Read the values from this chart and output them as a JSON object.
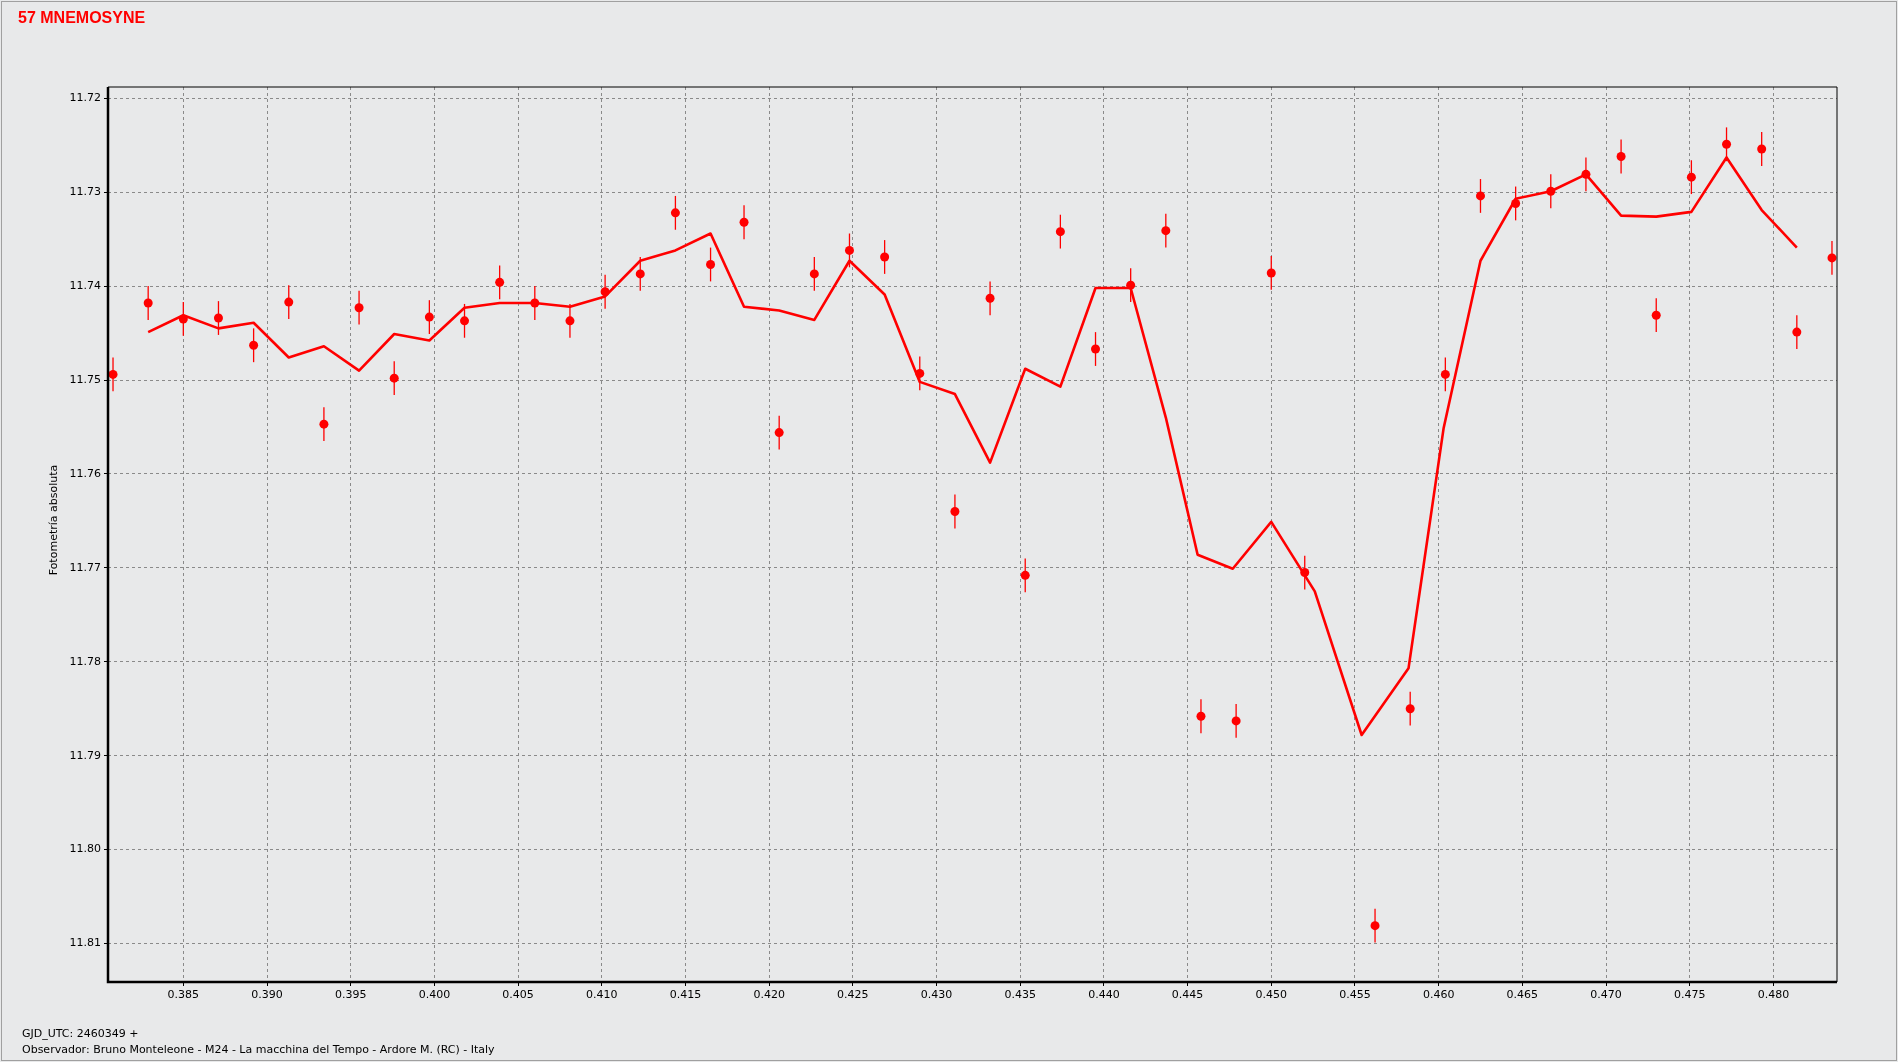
{
  "chart_data": {
    "type": "scatter",
    "title": "57 MNEMOSYNE",
    "ylabel": "Fotometría absoluta",
    "xlabel": "GJD_UTC: 2460349 +",
    "annotations": [
      "Observador: Bruno Monteleone - M24 - La macchina del Tempo - Ardore M. (RC) - Italy"
    ],
    "xlim": [
      0.3805,
      0.4838
    ],
    "ylim": [
      11.8141,
      11.7188
    ],
    "xticks": [
      0.385,
      {
        "value": 0.39,
        "label": "0.390"
      },
      0.395,
      {
        "value": 0.4,
        "label": "0.400"
      },
      0.405,
      {
        "value": 0.41,
        "label": "0.410"
      },
      0.415,
      {
        "value": 0.42,
        "label": "0.420"
      },
      0.425,
      {
        "value": 0.43,
        "label": "0.430"
      },
      0.435,
      {
        "value": 0.44,
        "label": "0.440"
      },
      0.445,
      {
        "value": 0.45,
        "label": "0.450"
      },
      0.455,
      {
        "value": 0.46,
        "label": "0.460"
      },
      0.465,
      {
        "value": 0.47,
        "label": "0.470"
      },
      0.475,
      {
        "value": 0.48,
        "label": "0.480"
      }
    ],
    "yticks": [
      11.72,
      11.73,
      11.74,
      11.75,
      11.76,
      11.77,
      11.78,
      11.79,
      {
        "value": 11.8,
        "label": "11.80"
      },
      11.81
    ],
    "grid": true,
    "legend": false,
    "line_style": "solid",
    "series": [
      {
        "marker": "circle",
        "color": "#ff0000",
        "x": [
          0.3808,
          0.3829,
          0.385,
          0.3871,
          0.3892,
          0.3913,
          0.3934,
          0.3955,
          0.3976,
          0.3997,
          0.4018,
          0.4039,
          0.406,
          0.4081,
          0.4102,
          0.4123,
          0.4144,
          0.4165,
          0.4185,
          0.4206,
          0.4227,
          0.4248,
          0.4269,
          0.429,
          0.4311,
          0.4332,
          0.4353,
          0.4374,
          0.4395,
          0.4416,
          0.4437,
          0.4458,
          0.4479,
          0.45,
          0.452,
          0.4562,
          0.4583,
          0.4604,
          0.4625,
          0.4646,
          0.4667,
          0.4688,
          0.4709,
          0.473,
          0.4751,
          0.4772,
          0.4793,
          0.4814,
          0.4835
        ],
        "values": [
          11.7494,
          11.7418,
          11.7435,
          11.7434,
          11.7463,
          11.7417,
          11.7547,
          11.7423,
          11.7498,
          11.7433,
          11.7437,
          11.7396,
          11.7418,
          11.7437,
          11.7406,
          11.7387,
          11.7322,
          11.7377,
          11.7332,
          11.7556,
          11.7387,
          11.7362,
          11.7369,
          11.7493,
          11.764,
          11.7413,
          11.7708,
          11.7342,
          11.7467,
          11.7399,
          11.7341,
          11.7858,
          11.7863,
          11.7386,
          11.7705,
          11.8081,
          11.785,
          11.7494,
          11.7304,
          11.7312,
          11.7299,
          11.7281,
          11.7262,
          11.7431,
          11.7284,
          11.7249,
          11.7254,
          11.7449,
          11.737
        ],
        "errors": [
          0.0018,
          0.0018,
          0.0018,
          0.0018,
          0.0018,
          0.0018,
          0.0018,
          0.0018,
          0.0018,
          0.0018,
          0.0018,
          0.0018,
          0.0018,
          0.0018,
          0.0018,
          0.0018,
          0.0018,
          0.0018,
          0.0018,
          0.0018,
          0.0018,
          0.0018,
          0.0018,
          0.0018,
          0.0018,
          0.0018,
          0.0018,
          0.0018,
          0.0018,
          0.0018,
          0.0018,
          0.0018,
          0.0018,
          0.0018,
          0.0018,
          0.0018,
          0.0018,
          0.0018,
          0.0018,
          0.0018,
          0.0018,
          0.0018,
          0.0018,
          0.0018,
          0.0018,
          0.0018,
          0.0018,
          0.0018,
          0.0018
        ]
      },
      {
        "type": "line",
        "marker": "none",
        "color": "#ff0000",
        "x": [
          0.3829,
          0.385,
          0.3871,
          0.3892,
          0.3913,
          0.3934,
          0.3955,
          0.3976,
          0.3997,
          0.4018,
          0.4039,
          0.406,
          0.4081,
          0.4102,
          0.4123,
          0.4144,
          0.4165,
          0.4185,
          0.4206,
          0.4227,
          0.4248,
          0.4269,
          0.429,
          0.4311,
          0.4332,
          0.4353,
          0.4374,
          0.4395,
          0.4416,
          0.4437,
          0.4456,
          0.4477,
          0.45,
          0.4526,
          0.4554,
          0.4582,
          0.4603,
          0.4625,
          0.4646,
          0.4667,
          0.4688,
          0.4709,
          0.473,
          0.4751,
          0.4772,
          0.4793,
          0.4814
        ],
        "values": [
          11.7449,
          11.7431,
          11.7445,
          11.7439,
          11.7476,
          11.7464,
          11.749,
          11.7451,
          11.7458,
          11.7423,
          11.7418,
          11.7418,
          11.7422,
          11.7411,
          11.7373,
          11.7362,
          11.7344,
          11.7422,
          11.7426,
          11.7436,
          11.7373,
          11.7409,
          11.7502,
          11.7515,
          11.7588,
          11.7488,
          11.7507,
          11.7402,
          11.7402,
          11.754,
          11.7686,
          11.7701,
          11.7651,
          11.7725,
          11.7878,
          11.7807,
          11.7551,
          11.7373,
          11.7307,
          11.7299,
          11.7281,
          11.7325,
          11.7326,
          11.7321,
          11.7263,
          11.7319,
          11.7359
        ]
      }
    ]
  }
}
